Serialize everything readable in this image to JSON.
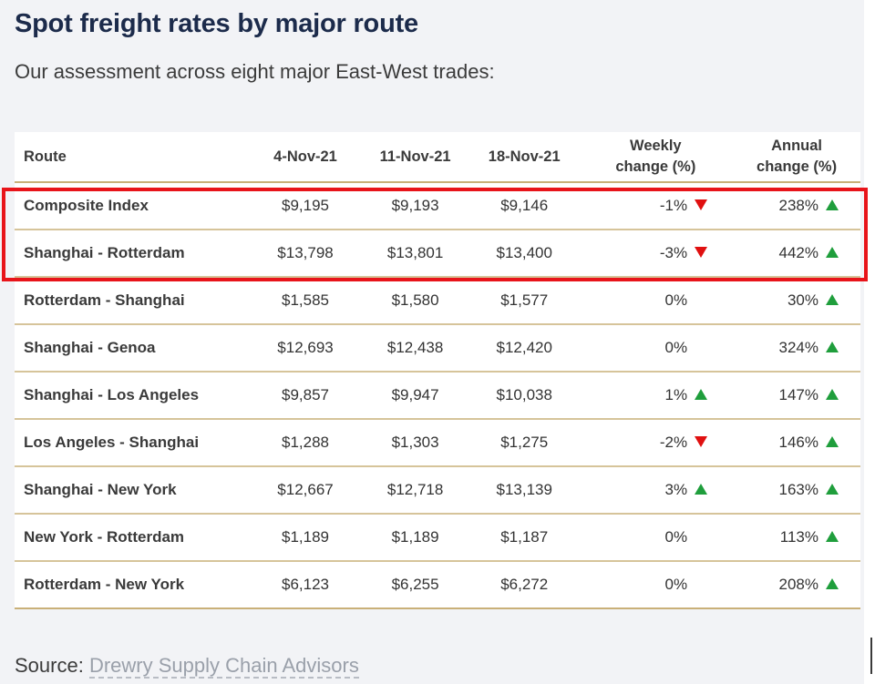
{
  "title": "Spot freight rates by major route",
  "subtitle": "Our assessment across eight major East-West trades:",
  "source": {
    "label": "Source:",
    "link_text": "Drewry Supply Chain Advisors"
  },
  "colors": {
    "up": "#1f9e3c",
    "down": "#e01010",
    "highlight": "#e8141a",
    "rule": "#c9b078"
  },
  "chart_data": {
    "type": "table",
    "title": "Spot freight rates by major route",
    "columns": {
      "route": "Route",
      "d1": "4-Nov-21",
      "d2": "11-Nov-21",
      "d3": "18-Nov-21",
      "weekly_1": "Weekly",
      "weekly_2": "change (%)",
      "annual_1": "Annual",
      "annual_2": "change (%)"
    },
    "rows": [
      {
        "route": "Composite Index",
        "d1": "$9,195",
        "d2": "$9,193",
        "d3": "$9,146",
        "weekly": "-1%",
        "weekly_dir": "down",
        "annual": "238%",
        "annual_dir": "up"
      },
      {
        "route": "Shanghai - Rotterdam",
        "d1": "$13,798",
        "d2": "$13,801",
        "d3": "$13,400",
        "weekly": "-3%",
        "weekly_dir": "down",
        "annual": "442%",
        "annual_dir": "up"
      },
      {
        "route": "Rotterdam - Shanghai",
        "d1": "$1,585",
        "d2": "$1,580",
        "d3": "$1,577",
        "weekly": "0%",
        "weekly_dir": "none",
        "annual": "30%",
        "annual_dir": "up"
      },
      {
        "route": "Shanghai - Genoa",
        "d1": "$12,693",
        "d2": "$12,438",
        "d3": "$12,420",
        "weekly": "0%",
        "weekly_dir": "none",
        "annual": "324%",
        "annual_dir": "up"
      },
      {
        "route": "Shanghai - Los Angeles",
        "d1": "$9,857",
        "d2": "$9,947",
        "d3": "$10,038",
        "weekly": "1%",
        "weekly_dir": "up",
        "annual": "147%",
        "annual_dir": "up"
      },
      {
        "route": "Los Angeles - Shanghai",
        "d1": "$1,288",
        "d2": "$1,303",
        "d3": "$1,275",
        "weekly": "-2%",
        "weekly_dir": "down",
        "annual": "146%",
        "annual_dir": "up"
      },
      {
        "route": "Shanghai - New York",
        "d1": "$12,667",
        "d2": "$12,718",
        "d3": "$13,139",
        "weekly": "3%",
        "weekly_dir": "up",
        "annual": "163%",
        "annual_dir": "up"
      },
      {
        "route": "New York - Rotterdam",
        "d1": "$1,189",
        "d2": "$1,189",
        "d3": "$1,187",
        "weekly": "0%",
        "weekly_dir": "none",
        "annual": "113%",
        "annual_dir": "up"
      },
      {
        "route": "Rotterdam - New York",
        "d1": "$6,123",
        "d2": "$6,255",
        "d3": "$6,272",
        "weekly": "0%",
        "weekly_dir": "none",
        "annual": "208%",
        "annual_dir": "up"
      }
    ],
    "highlighted_rows": [
      "Composite Index",
      "Shanghai - Rotterdam"
    ]
  }
}
